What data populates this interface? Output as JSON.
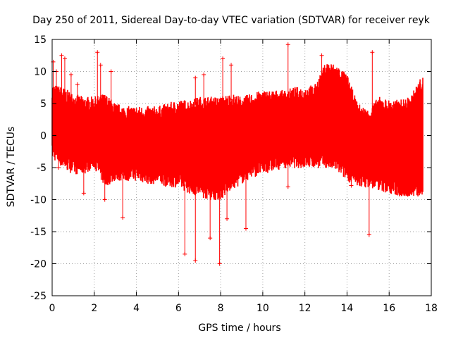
{
  "chart_data": {
    "type": "scatter",
    "title": "Day 250 of 2011, Sidereal Day-to-day VTEC variation (SDTVAR) for receiver reyk",
    "xlabel": "GPS time / hours",
    "ylabel": "SDTVAR / TECUs",
    "xlim": [
      0,
      18
    ],
    "ylim": [
      -25,
      15
    ],
    "xticks": [
      "0",
      "2",
      "4",
      "6",
      "8",
      "10",
      "12",
      "14",
      "16",
      "18"
    ],
    "yticks": [
      "15",
      "10",
      "5",
      "0",
      "-5",
      "-10",
      "-15",
      "-20",
      "-25"
    ],
    "grid": true,
    "series_color": "#ff0000",
    "envelope": {
      "x": [
        0,
        0.5,
        1,
        1.5,
        2,
        2.5,
        3,
        3.5,
        4,
        4.5,
        5,
        5.5,
        6,
        6.5,
        7,
        7.5,
        8,
        8.5,
        9,
        9.5,
        10,
        10.5,
        11,
        11.5,
        12,
        12.5,
        13,
        13.5,
        14,
        14.5,
        15,
        15.5,
        16,
        16.5,
        17,
        17.5
      ],
      "upper": [
        7,
        6.5,
        5.5,
        5,
        5,
        5.5,
        4,
        3.5,
        3.5,
        3.5,
        3.5,
        4,
        4.5,
        4.5,
        5,
        5,
        5,
        5.5,
        5,
        5.5,
        6,
        6,
        6,
        6.5,
        6.5,
        7,
        10.5,
        10,
        8.5,
        4,
        3,
        5,
        4.5,
        4.5,
        5,
        8
      ],
      "lower": [
        -2.5,
        -4,
        -5,
        -5,
        -4,
        -7,
        -6,
        -6,
        -6,
        -6.5,
        -6.5,
        -7,
        -7,
        -8,
        -8.5,
        -9,
        -9,
        -7.5,
        -6.5,
        -5.5,
        -5,
        -4.5,
        -4,
        -4,
        -4,
        -4,
        -4,
        -4.5,
        -6,
        -7,
        -7,
        -7.5,
        -8,
        -8.5,
        -8.5,
        -8.5
      ]
    },
    "spikes": [
      {
        "x": 0.05,
        "y": 11.5
      },
      {
        "x": 0.2,
        "y": 10
      },
      {
        "x": 0.45,
        "y": 12.5
      },
      {
        "x": 0.6,
        "y": 12
      },
      {
        "x": 0.9,
        "y": 9.5
      },
      {
        "x": 1.2,
        "y": 8
      },
      {
        "x": 2.15,
        "y": 13
      },
      {
        "x": 2.3,
        "y": 11
      },
      {
        "x": 2.8,
        "y": 10
      },
      {
        "x": 6.8,
        "y": 9
      },
      {
        "x": 7.2,
        "y": 9.5
      },
      {
        "x": 8.1,
        "y": 12
      },
      {
        "x": 8.5,
        "y": 11
      },
      {
        "x": 11.2,
        "y": 14.2
      },
      {
        "x": 12.8,
        "y": 12.5
      },
      {
        "x": 15.2,
        "y": 13
      },
      {
        "x": 0.3,
        "y": -5
      },
      {
        "x": 1.5,
        "y": -9
      },
      {
        "x": 2.5,
        "y": -10
      },
      {
        "x": 3.35,
        "y": -12.8
      },
      {
        "x": 6.3,
        "y": -18.5
      },
      {
        "x": 6.8,
        "y": -19.5
      },
      {
        "x": 7.5,
        "y": -16
      },
      {
        "x": 7.95,
        "y": -20
      },
      {
        "x": 8.3,
        "y": -13
      },
      {
        "x": 9.2,
        "y": -14.5
      },
      {
        "x": 11.2,
        "y": -8
      },
      {
        "x": 14.2,
        "y": -7.8
      },
      {
        "x": 15.05,
        "y": -15.5
      }
    ],
    "points_per_hour": 60
  }
}
